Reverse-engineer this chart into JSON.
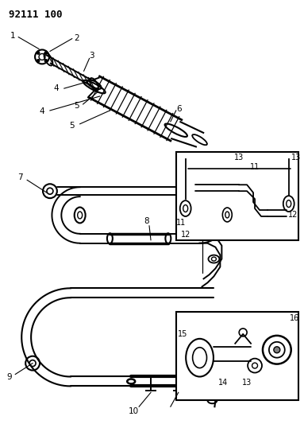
{
  "title": "92111 100",
  "bg_color": "#ffffff",
  "line_color": "#000000",
  "figsize": [
    3.83,
    5.33
  ],
  "dpi": 100
}
